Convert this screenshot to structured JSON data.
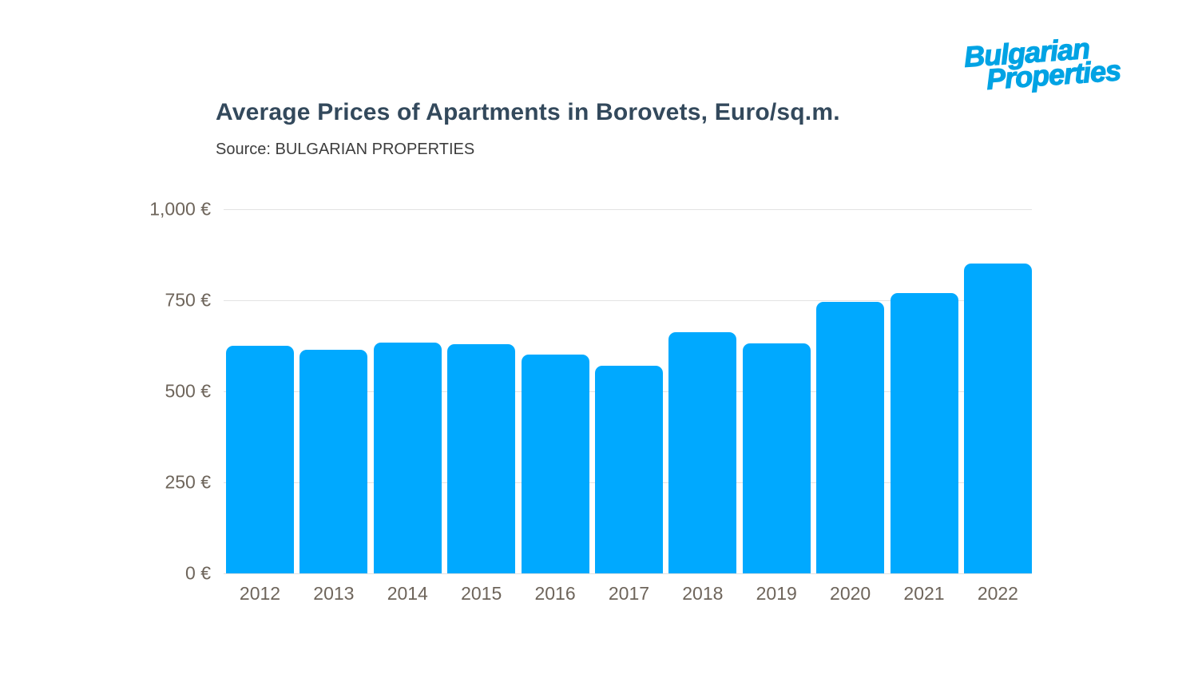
{
  "logo": {
    "line1": "Bulgarian",
    "line2": "Properties",
    "color": "#00a3e4"
  },
  "chart_data": {
    "type": "bar",
    "title": "Average Prices of Apartments in Borovets, Euro/sq.m.",
    "source": "Source: BULGARIAN PROPERTIES",
    "categories": [
      "2012",
      "2013",
      "2014",
      "2015",
      "2016",
      "2017",
      "2018",
      "2019",
      "2020",
      "2021",
      "2022"
    ],
    "values": [
      625,
      615,
      633,
      630,
      602,
      570,
      662,
      632,
      745,
      770,
      850
    ],
    "xlabel": "",
    "ylabel": "",
    "ylim": [
      0,
      1000
    ],
    "yticks": [
      {
        "label": "0 €",
        "value": 0
      },
      {
        "label": "250 €",
        "value": 250
      },
      {
        "label": "500 €",
        "value": 500
      },
      {
        "label": "750 €",
        "value": 750
      },
      {
        "label": "1,000 €",
        "value": 1000
      }
    ],
    "grid": "horizontal",
    "legend": "none",
    "bar_color": "#00a9ff",
    "colors": {
      "title": "#33495c",
      "source": "#3d3d3d",
      "axis_labels": "#6e655b",
      "gridline": "#e3e3e3",
      "background": "#ffffff"
    }
  }
}
